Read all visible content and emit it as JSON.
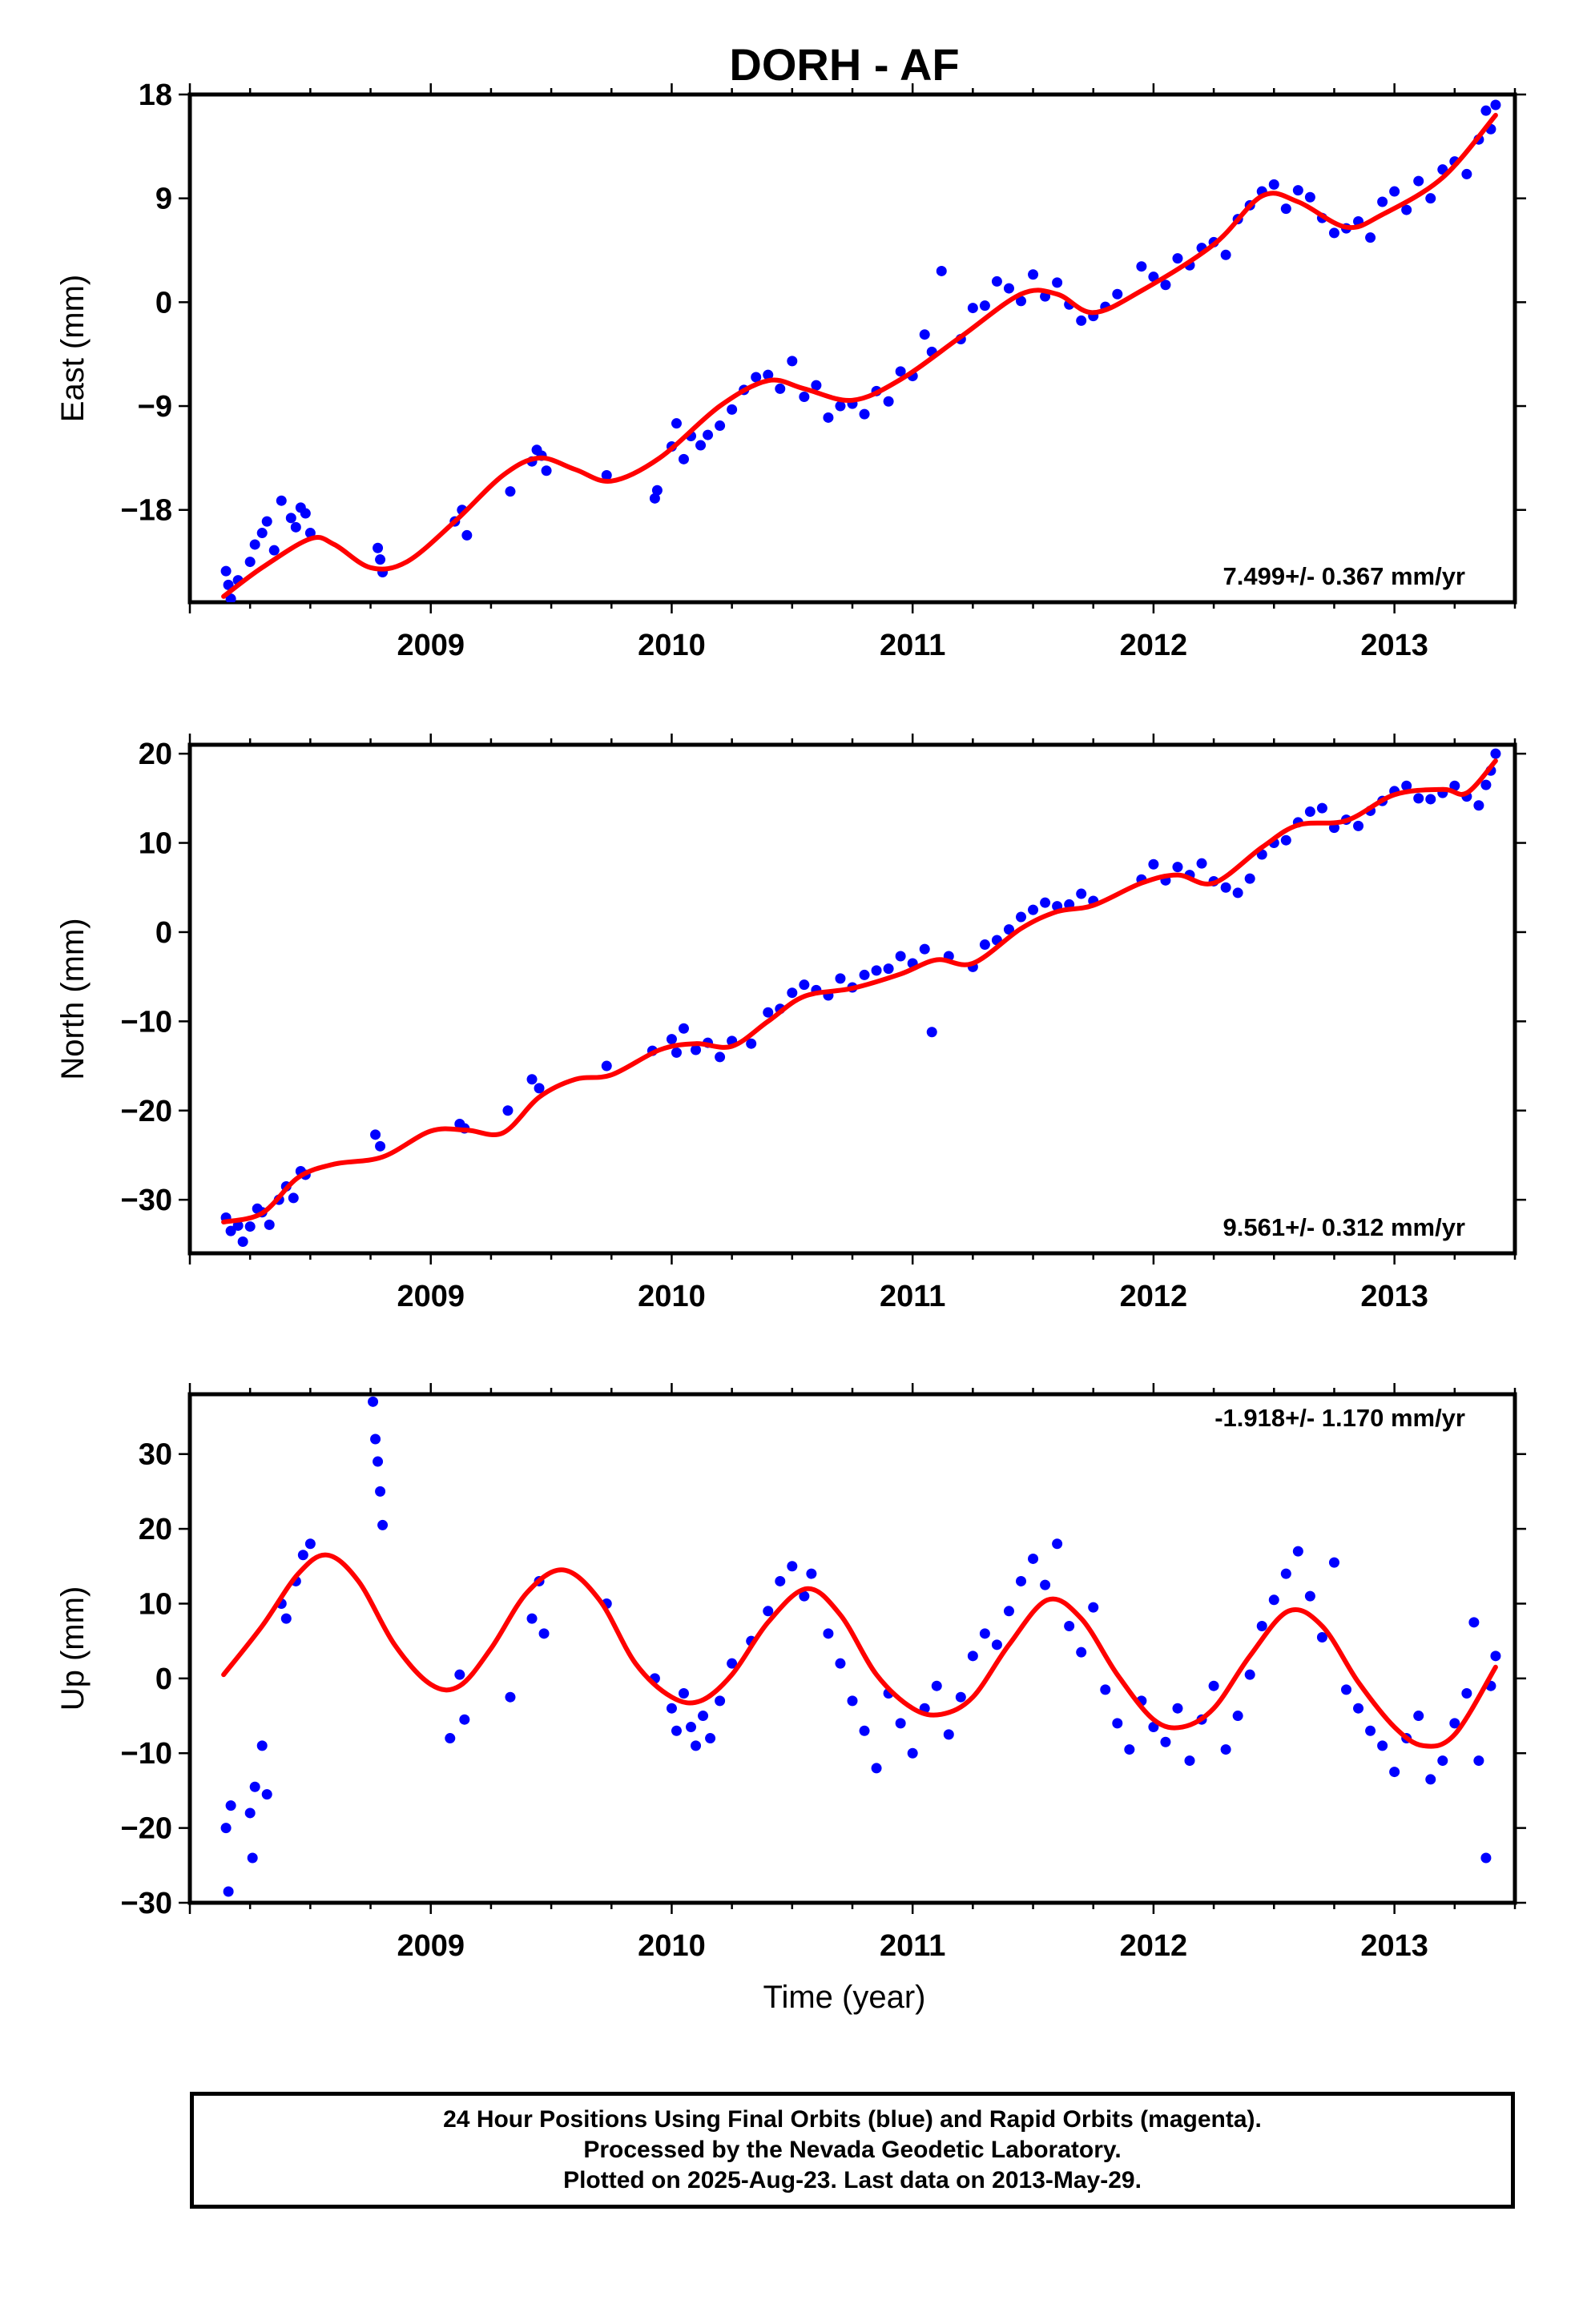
{
  "title": "DORH - AF",
  "xlabel": "Time (year)",
  "footer": {
    "line1": "24 Hour Positions Using Final Orbits (blue) and Rapid Orbits (magenta).",
    "line2": "Processed by the Nevada Geodetic Laboratory.",
    "line3": "Plotted on 2025-Aug-23. Last data on 2013-May-29."
  },
  "colors": {
    "data": "#0000ff",
    "model": "#ff0000",
    "frame": "#000000"
  },
  "chart_data": [
    {
      "type": "scatter",
      "ylabel": "East (mm)",
      "rate_label": "7.499+/- 0.367 mm/yr",
      "rate_position": "bottom-right",
      "xlim": [
        2008.0,
        2013.5
      ],
      "ylim": [
        -26,
        18
      ],
      "xticks": [
        2009,
        2010,
        2011,
        2012,
        2013
      ],
      "xticklabels": [
        "2009",
        "2010",
        "2011",
        "2012",
        "2013"
      ],
      "yticks": [
        18,
        9,
        0,
        -9,
        -18
      ],
      "yticklabels": [
        "18",
        "9",
        "0",
        "−9",
        "−18"
      ],
      "model": {
        "x": [
          2008.14,
          2008.3,
          2008.5,
          2008.6,
          2008.75,
          2008.9,
          2009.1,
          2009.3,
          2009.45,
          2009.6,
          2009.75,
          2009.95,
          2010.2,
          2010.4,
          2010.55,
          2010.75,
          2010.95,
          2011.2,
          2011.45,
          2011.6,
          2011.75,
          2011.95,
          2012.25,
          2012.45,
          2012.6,
          2012.8,
          2012.95,
          2013.2,
          2013.42
        ],
        "y": [
          -25.5,
          -23.0,
          -20.5,
          -21.0,
          -23.0,
          -22.5,
          -19.0,
          -15.0,
          -13.5,
          -14.5,
          -15.5,
          -13.5,
          -9.0,
          -6.8,
          -7.5,
          -8.5,
          -6.7,
          -3.0,
          0.7,
          0.7,
          -0.9,
          1.0,
          5.0,
          9.2,
          8.7,
          6.5,
          7.6,
          10.8,
          16.2
        ]
      },
      "series": [
        {
          "name": "Final Orbits",
          "x": [
            2008.15,
            2008.16,
            2008.17,
            2008.2,
            2008.25,
            2008.27,
            2008.3,
            2008.32,
            2008.35,
            2008.38,
            2008.42,
            2008.44,
            2008.46,
            2008.48,
            2008.5,
            2008.78,
            2008.79,
            2008.8,
            2009.1,
            2009.13,
            2009.15,
            2009.33,
            2009.42,
            2009.44,
            2009.46,
            2009.48,
            2009.73,
            2009.93,
            2009.94,
            2010.0,
            2010.02,
            2010.05,
            2010.08,
            2010.12,
            2010.15,
            2010.2,
            2010.25,
            2010.3,
            2010.35,
            2010.4,
            2010.45,
            2010.5,
            2010.55,
            2010.6,
            2010.65,
            2010.7,
            2010.75,
            2010.8,
            2010.85,
            2010.9,
            2010.95,
            2011.0,
            2011.05,
            2011.08,
            2011.12,
            2011.2,
            2011.25,
            2011.3,
            2011.35,
            2011.4,
            2011.45,
            2011.5,
            2011.55,
            2011.6,
            2011.65,
            2011.7,
            2011.75,
            2011.8,
            2011.85,
            2011.95,
            2012.0,
            2012.05,
            2012.1,
            2012.15,
            2012.2,
            2012.25,
            2012.3,
            2012.35,
            2012.4,
            2012.45,
            2012.5,
            2012.55,
            2012.6,
            2012.65,
            2012.7,
            2012.75,
            2012.8,
            2012.85,
            2012.9,
            2012.95,
            2013.0,
            2013.05,
            2013.1,
            2013.15,
            2013.2,
            2013.25,
            2013.3,
            2013.35,
            2013.38,
            2013.4,
            2013.42
          ],
          "y": [
            -23.3,
            -24.5,
            -25.7,
            -24.1,
            -22.5,
            -21.0,
            -20.0,
            -19.0,
            -21.5,
            -17.2,
            -18.7,
            -19.5,
            -17.8,
            -18.3,
            -20.0,
            -21.3,
            -22.3,
            -23.4,
            -19.0,
            -18.0,
            -20.2,
            -16.4,
            -13.8,
            -12.8,
            -13.3,
            -14.6,
            -15.0,
            -17.0,
            -16.3,
            -12.5,
            -10.5,
            -13.6,
            -11.6,
            -12.4,
            -11.5,
            -10.7,
            -9.3,
            -7.6,
            -6.5,
            -6.3,
            -7.5,
            -5.1,
            -8.2,
            -7.2,
            -10.0,
            -9.0,
            -8.8,
            -9.7,
            -7.7,
            -8.6,
            -6.0,
            -6.4,
            -2.8,
            -4.3,
            2.7,
            -3.2,
            -0.5,
            -0.3,
            1.8,
            1.2,
            0.1,
            2.4,
            0.5,
            1.7,
            -0.2,
            -1.6,
            -1.2,
            -0.4,
            0.7,
            3.1,
            2.2,
            1.5,
            3.8,
            3.2,
            4.7,
            5.2,
            4.1,
            7.2,
            8.4,
            9.6,
            10.2,
            8.1,
            9.7,
            9.1,
            7.3,
            6.0,
            6.4,
            7.0,
            5.6,
            8.7,
            9.6,
            8.0,
            10.5,
            9.0,
            11.5,
            12.2,
            11.1,
            14.1,
            16.6,
            15.0,
            17.1
          ]
        }
      ]
    },
    {
      "type": "scatter",
      "ylabel": "North (mm)",
      "rate_label": "9.561+/- 0.312 mm/yr",
      "rate_position": "bottom-right",
      "xlim": [
        2008.0,
        2013.5
      ],
      "ylim": [
        -36,
        21
      ],
      "xticks": [
        2009,
        2010,
        2011,
        2012,
        2013
      ],
      "xticklabels": [
        "2009",
        "2010",
        "2011",
        "2012",
        "2013"
      ],
      "yticks": [
        20,
        10,
        0,
        -10,
        -20,
        -30
      ],
      "yticklabels": [
        "20",
        "10",
        "0",
        "−10",
        "−20",
        "−30"
      ],
      "model": {
        "x": [
          2008.14,
          2008.3,
          2008.45,
          2008.6,
          2008.8,
          2009.0,
          2009.15,
          2009.3,
          2009.45,
          2009.6,
          2009.75,
          2009.95,
          2010.1,
          2010.25,
          2010.4,
          2010.55,
          2010.75,
          2010.95,
          2011.1,
          2011.25,
          2011.45,
          2011.6,
          2011.75,
          2011.95,
          2012.1,
          2012.25,
          2012.45,
          2012.6,
          2012.8,
          2013.0,
          2013.2,
          2013.3,
          2013.42
        ],
        "y": [
          -32.5,
          -31.5,
          -27.5,
          -26.0,
          -25.2,
          -22.3,
          -22.2,
          -22.5,
          -18.5,
          -16.5,
          -16.0,
          -13.2,
          -12.5,
          -12.8,
          -10.0,
          -7.2,
          -6.3,
          -4.7,
          -3.1,
          -3.5,
          0.4,
          2.3,
          3.0,
          5.5,
          6.4,
          5.5,
          9.5,
          12.0,
          12.5,
          15.4,
          16.0,
          15.6,
          19.2
        ]
      },
      "series": [
        {
          "name": "Final Orbits",
          "x": [
            2008.15,
            2008.17,
            2008.2,
            2008.22,
            2008.25,
            2008.28,
            2008.3,
            2008.33,
            2008.37,
            2008.4,
            2008.43,
            2008.46,
            2008.48,
            2008.77,
            2008.79,
            2009.12,
            2009.14,
            2009.32,
            2009.42,
            2009.45,
            2009.73,
            2009.92,
            2010.0,
            2010.02,
            2010.05,
            2010.1,
            2010.15,
            2010.2,
            2010.25,
            2010.33,
            2010.4,
            2010.45,
            2010.5,
            2010.55,
            2010.6,
            2010.65,
            2010.7,
            2010.75,
            2010.8,
            2010.85,
            2010.9,
            2010.95,
            2011.0,
            2011.05,
            2011.08,
            2011.15,
            2011.25,
            2011.3,
            2011.35,
            2011.4,
            2011.45,
            2011.5,
            2011.55,
            2011.6,
            2011.65,
            2011.7,
            2011.75,
            2011.95,
            2012.0,
            2012.05,
            2012.1,
            2012.15,
            2012.2,
            2012.25,
            2012.3,
            2012.35,
            2012.4,
            2012.45,
            2012.5,
            2012.55,
            2012.6,
            2012.65,
            2012.7,
            2012.75,
            2012.8,
            2012.85,
            2012.9,
            2012.95,
            2013.0,
            2013.05,
            2013.1,
            2013.15,
            2013.2,
            2013.25,
            2013.3,
            2013.35,
            2013.38,
            2013.4,
            2013.42
          ],
          "y": [
            -32.0,
            -33.5,
            -32.9,
            -34.7,
            -33.0,
            -31.0,
            -31.4,
            -32.8,
            -30.0,
            -28.5,
            -29.8,
            -26.8,
            -27.2,
            -22.7,
            -24.0,
            -21.5,
            -22.0,
            -20.0,
            -16.5,
            -17.5,
            -15.0,
            -13.3,
            -12.0,
            -13.5,
            -10.8,
            -13.2,
            -12.4,
            -14.0,
            -12.2,
            -12.5,
            -9.0,
            -8.6,
            -6.8,
            -5.9,
            -6.5,
            -7.1,
            -5.2,
            -6.2,
            -4.8,
            -4.3,
            -4.1,
            -2.7,
            -3.5,
            -1.9,
            -11.2,
            -2.7,
            -3.9,
            -1.4,
            -0.9,
            0.3,
            1.7,
            2.5,
            3.3,
            2.9,
            3.1,
            4.3,
            3.5,
            5.9,
            7.6,
            5.8,
            7.3,
            6.4,
            7.7,
            5.7,
            5.0,
            4.4,
            6.0,
            8.7,
            10.0,
            10.3,
            12.3,
            13.5,
            13.9,
            11.7,
            12.6,
            11.9,
            13.6,
            14.7,
            15.8,
            16.4,
            15.0,
            14.9,
            15.6,
            16.4,
            15.2,
            14.2,
            16.5,
            18.1,
            20.0
          ]
        }
      ]
    },
    {
      "type": "scatter",
      "ylabel": "Up (mm)",
      "rate_label": "-1.918+/- 1.170 mm/yr",
      "rate_position": "top-right",
      "xlim": [
        2008.0,
        2013.5
      ],
      "ylim": [
        -30,
        38
      ],
      "xticks": [
        2009,
        2010,
        2011,
        2012,
        2013
      ],
      "xticklabels": [
        "2009",
        "2010",
        "2011",
        "2012",
        "2013"
      ],
      "yticks": [
        30,
        20,
        10,
        0,
        -10,
        -20,
        -30
      ],
      "yticklabels": [
        "30",
        "20",
        "10",
        "0",
        "−10",
        "−20",
        "−30"
      ],
      "model": {
        "x": [
          2008.14,
          2008.3,
          2008.45,
          2008.57,
          2008.7,
          2008.85,
          2009.0,
          2009.12,
          2009.25,
          2009.4,
          2009.55,
          2009.7,
          2009.85,
          2010.0,
          2010.12,
          2010.25,
          2010.4,
          2010.56,
          2010.7,
          2010.85,
          2011.0,
          2011.12,
          2011.25,
          2011.4,
          2011.56,
          2011.7,
          2011.85,
          2012.0,
          2012.12,
          2012.25,
          2012.4,
          2012.56,
          2012.7,
          2012.85,
          2013.0,
          2013.12,
          2013.25,
          2013.42
        ],
        "y": [
          0.5,
          7.0,
          14.0,
          16.5,
          13.0,
          4.5,
          -0.8,
          -1.0,
          4.0,
          11.5,
          14.5,
          10.5,
          2.0,
          -2.5,
          -3.0,
          0.5,
          7.5,
          12.0,
          8.5,
          0.5,
          -4.0,
          -4.8,
          -2.5,
          4.5,
          10.5,
          8.0,
          0.5,
          -5.5,
          -6.5,
          -4.0,
          3.0,
          9.0,
          7.0,
          -0.5,
          -6.5,
          -9.0,
          -7.5,
          1.5
        ]
      },
      "series": [
        {
          "name": "Final Orbits",
          "x": [
            2008.15,
            2008.16,
            2008.17,
            2008.25,
            2008.26,
            2008.27,
            2008.3,
            2008.32,
            2008.38,
            2008.4,
            2008.44,
            2008.47,
            2008.5,
            2008.76,
            2008.77,
            2008.78,
            2008.79,
            2008.8,
            2009.08,
            2009.12,
            2009.14,
            2009.33,
            2009.42,
            2009.45,
            2009.47,
            2009.73,
            2009.93,
            2010.0,
            2010.02,
            2010.05,
            2010.08,
            2010.1,
            2010.13,
            2010.16,
            2010.2,
            2010.25,
            2010.33,
            2010.4,
            2010.45,
            2010.5,
            2010.55,
            2010.58,
            2010.65,
            2010.7,
            2010.75,
            2010.8,
            2010.85,
            2010.9,
            2010.95,
            2011.0,
            2011.05,
            2011.1,
            2011.15,
            2011.2,
            2011.25,
            2011.3,
            2011.35,
            2011.4,
            2011.45,
            2011.5,
            2011.55,
            2011.6,
            2011.65,
            2011.7,
            2011.75,
            2011.8,
            2011.85,
            2011.9,
            2011.95,
            2012.0,
            2012.05,
            2012.1,
            2012.15,
            2012.2,
            2012.25,
            2012.3,
            2012.35,
            2012.4,
            2012.45,
            2012.5,
            2012.55,
            2012.6,
            2012.65,
            2012.7,
            2012.75,
            2012.8,
            2012.85,
            2012.9,
            2012.95,
            2013.0,
            2013.05,
            2013.1,
            2013.15,
            2013.2,
            2013.25,
            2013.3,
            2013.33,
            2013.35,
            2013.38,
            2013.4,
            2013.42
          ],
          "y": [
            -20.0,
            -28.5,
            -17.0,
            -18.0,
            -24.0,
            -14.5,
            -9.0,
            -15.5,
            10.0,
            8.0,
            13.0,
            16.5,
            18.0,
            37.0,
            32.0,
            29.0,
            25.0,
            20.5,
            -8.0,
            0.5,
            -5.5,
            -2.5,
            8.0,
            13.0,
            6.0,
            10.0,
            0.0,
            -4.0,
            -7.0,
            -2.0,
            -6.5,
            -9.0,
            -5.0,
            -8.0,
            -3.0,
            2.0,
            5.0,
            9.0,
            13.0,
            15.0,
            11.0,
            14.0,
            6.0,
            2.0,
            -3.0,
            -7.0,
            -12.0,
            -2.0,
            -6.0,
            -10.0,
            -4.0,
            -1.0,
            -7.5,
            -2.5,
            3.0,
            6.0,
            4.5,
            9.0,
            13.0,
            16.0,
            12.5,
            18.0,
            7.0,
            3.5,
            9.5,
            -1.5,
            -6.0,
            -9.5,
            -3.0,
            -6.5,
            -8.5,
            -4.0,
            -11.0,
            -5.5,
            -1.0,
            -9.5,
            -5.0,
            0.5,
            7.0,
            10.5,
            14.0,
            17.0,
            11.0,
            5.5,
            15.5,
            -1.5,
            -4.0,
            -7.0,
            -9.0,
            -12.5,
            -8.0,
            -5.0,
            -13.5,
            -11.0,
            -6.0,
            -2.0,
            7.5,
            -11.0,
            -24.0,
            -1.0,
            3.0
          ]
        }
      ]
    }
  ]
}
